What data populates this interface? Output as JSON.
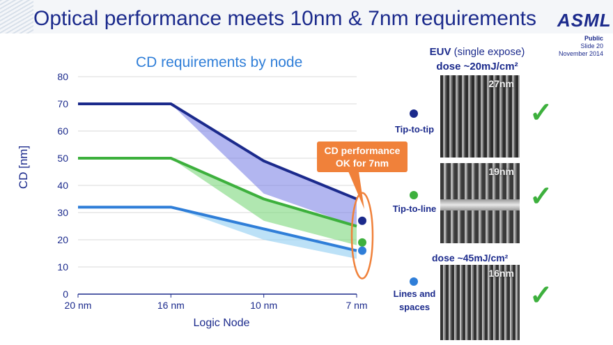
{
  "slide": {
    "title": "Optical performance meets 10nm & 7nm requirements",
    "logo": "ASML",
    "classification": "Public",
    "slide_number": "Slide 20",
    "date": "November 2014"
  },
  "chart_data": {
    "type": "line",
    "title": "CD requirements by node",
    "xlabel": "Logic Node",
    "ylabel": "CD [nm]",
    "categories": [
      "20 nm",
      "16 nm",
      "10 nm",
      "7 nm"
    ],
    "ylim": [
      0,
      80
    ],
    "yticks": [
      0,
      10,
      20,
      30,
      40,
      50,
      60,
      70,
      80
    ],
    "grid": true,
    "series": [
      {
        "name": "Tip-to-tip",
        "color": "#1b2a8c",
        "band_color": "#7f86e6",
        "values": [
          70,
          70,
          49,
          35
        ],
        "lower": [
          70,
          70,
          37,
          25
        ]
      },
      {
        "name": "Tip-to-line",
        "color": "#3db03d",
        "band_color": "#7bd77b",
        "values": [
          50,
          50,
          35,
          25
        ],
        "lower": [
          50,
          50,
          27,
          18
        ]
      },
      {
        "name": "Lines and spaces",
        "color": "#2f7ed8",
        "band_color": "#8fcdf2",
        "values": [
          32,
          32,
          24,
          16
        ],
        "lower": [
          32,
          32,
          20,
          13
        ]
      }
    ],
    "measured_points": [
      {
        "name": "Tip-to-tip",
        "x": "7 nm",
        "value": 27,
        "color": "#1b2a8c"
      },
      {
        "name": "Tip-to-line",
        "x": "7 nm",
        "value": 19,
        "color": "#3db03d"
      },
      {
        "name": "Lines and spaces",
        "x": "7 nm",
        "value": 16,
        "color": "#2f7ed8"
      }
    ],
    "annotation": "CD performance OK for 7nm"
  },
  "euv": {
    "line1_bold": "EUV",
    "line1_rest": "(single expose)",
    "line2": "dose ~20mJ/cm²",
    "dose2": "dose ~45mJ/cm²"
  },
  "features": [
    {
      "label": "Tip-to-tip",
      "sem_label": "27nm",
      "color": "#1b2a8c"
    },
    {
      "label": "Tip-to-line",
      "sem_label": "19nm",
      "color": "#3db03d"
    },
    {
      "label": "Lines and spaces",
      "sem_label": "16nm",
      "color": "#2f7ed8"
    }
  ],
  "check_glyph": "✓"
}
